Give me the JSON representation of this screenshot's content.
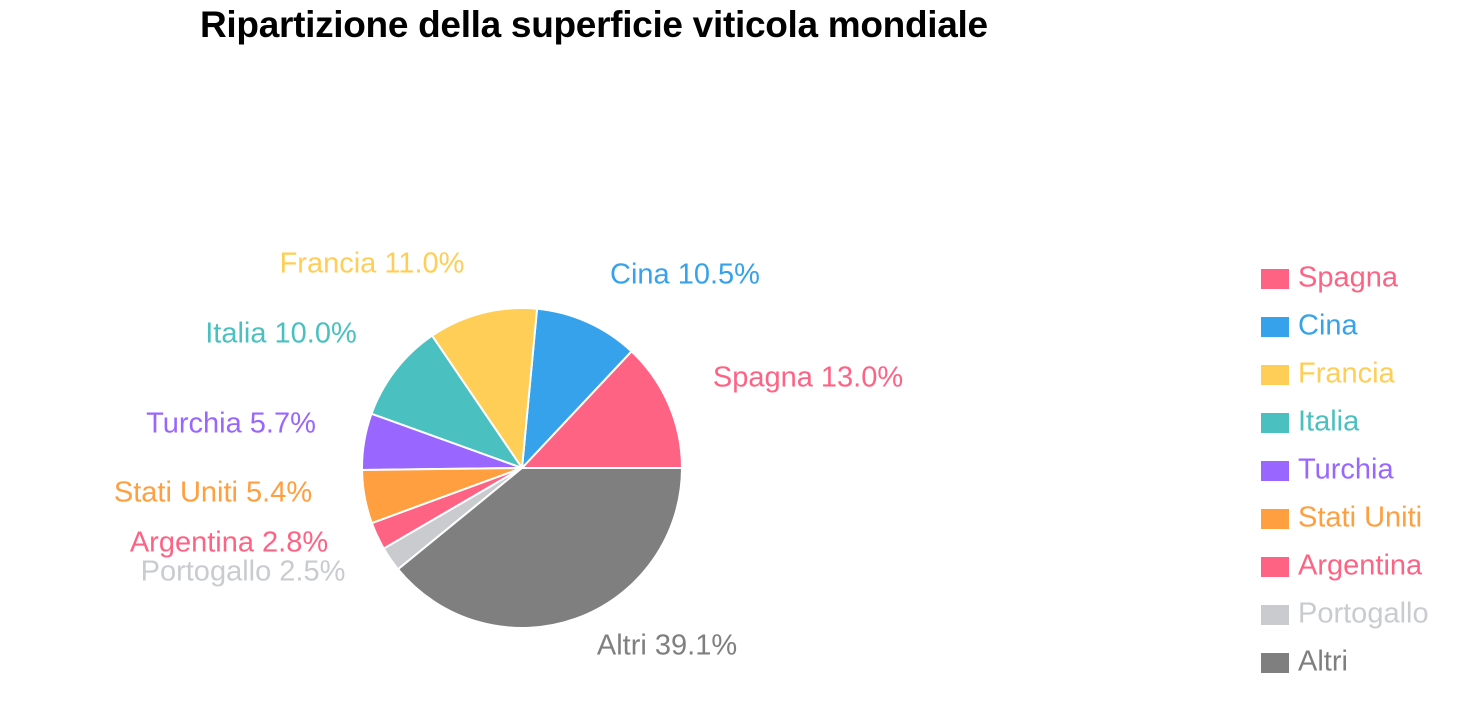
{
  "title": "Ripartizione della superficie viticola mondiale",
  "chart_data": {
    "type": "pie",
    "title": "Ripartizione della superficie viticola mondiale",
    "unit": "%",
    "legend_position": "right",
    "slices": [
      {
        "label": "Spagna",
        "value": 13.0,
        "color": "#FF6384"
      },
      {
        "label": "Cina",
        "value": 10.5,
        "color": "#36A2EB"
      },
      {
        "label": "Francia",
        "value": 11.0,
        "color": "#FFCE56"
      },
      {
        "label": "Italia",
        "value": 10.0,
        "color": "#4BC0C0"
      },
      {
        "label": "Turchia",
        "value": 5.7,
        "color": "#9966FF"
      },
      {
        "label": "Stati Uniti",
        "value": 5.4,
        "color": "#FF9F40"
      },
      {
        "label": "Argentina",
        "value": 2.8,
        "color": "#FF6384"
      },
      {
        "label": "Portogallo",
        "value": 2.5,
        "color": "#C9CBCF"
      },
      {
        "label": "Altri",
        "value": 39.1,
        "color": "#7F7F7F"
      }
    ]
  }
}
